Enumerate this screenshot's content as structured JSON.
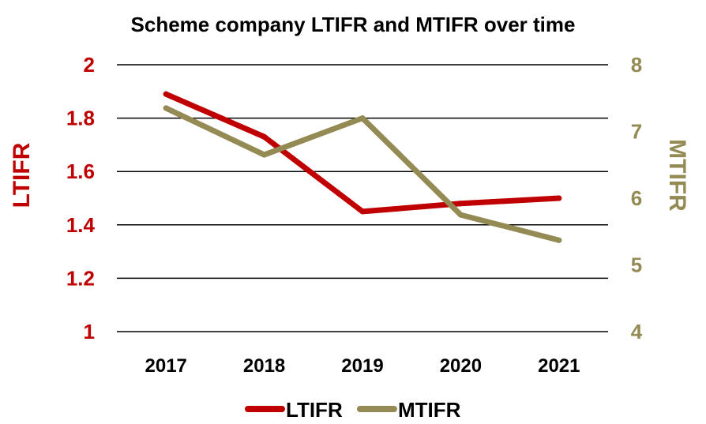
{
  "chart_data": {
    "type": "line",
    "title": "Scheme company LTIFR and MTIFR over time",
    "categories": [
      "2017",
      "2018",
      "2019",
      "2020",
      "2021"
    ],
    "series": [
      {
        "name": "LTIFR",
        "axis": "left",
        "color": "#C00000",
        "values": [
          1.89,
          1.73,
          1.45,
          1.48,
          1.5
        ]
      },
      {
        "name": "MTIFR",
        "axis": "right",
        "color": "#948A54",
        "values": [
          7.35,
          6.65,
          7.2,
          5.75,
          5.37
        ]
      }
    ],
    "ylabel_left": "LTIFR",
    "ylabel_right": "MTIFR",
    "ylim_left": [
      1,
      2
    ],
    "ylim_right": [
      4,
      8
    ],
    "yticks_left": [
      "1",
      "1.2",
      "1.4",
      "1.6",
      "1.8",
      "2"
    ],
    "yticks_right": [
      "4",
      "5",
      "6",
      "7",
      "8"
    ],
    "grid": true,
    "legend_position": "bottom"
  },
  "colors": {
    "left_axis": "#C00000",
    "right_axis": "#948A54",
    "grid": "#000000"
  }
}
